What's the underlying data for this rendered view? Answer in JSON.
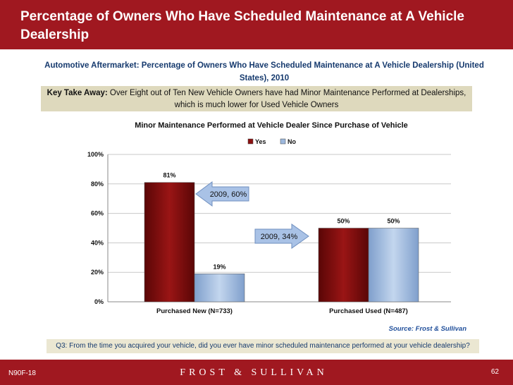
{
  "header": {
    "title": "Percentage of Owners Who Have Scheduled Maintenance at A Vehicle Dealership"
  },
  "subtitle": "Automotive Aftermarket: Percentage of Owners Who Have Scheduled Maintenance at A Vehicle Dealership (United States), 2010",
  "takeaway": {
    "label": "Key Take Away:",
    "text": " Over Eight out of Ten New Vehicle Owners have had Minor Maintenance Performed at Dealerships, which is much lower for Used Vehicle Owners"
  },
  "chart_data": {
    "type": "bar",
    "title": "Minor Maintenance Performed at Vehicle Dealer Since Purchase of Vehicle",
    "categories": [
      "Purchased New (N=733)",
      "Purchased Used (N=487)"
    ],
    "series": [
      {
        "name": "Yes",
        "values": [
          81,
          50
        ],
        "color": "#8a1010"
      },
      {
        "name": "No",
        "values": [
          19,
          50
        ],
        "color": "#9db8dd"
      }
    ],
    "data_labels": [
      "81%",
      "19%",
      "50%",
      "50%"
    ],
    "ylim": [
      0,
      100
    ],
    "yticks": [
      0,
      20,
      40,
      60,
      80,
      100
    ],
    "ytick_labels": [
      "0%",
      "20%",
      "40%",
      "60%",
      "80%",
      "100%"
    ],
    "legend_position": "top-right",
    "annotations": [
      "2009, 60%",
      "2009, 34%"
    ]
  },
  "source": "Source: Frost & Sullivan",
  "question": "Q3: From the time you acquired your vehicle, did you ever have minor scheduled maintenance performed at your vehicle dealership?",
  "footer": {
    "code": "N90F-18",
    "brand": "FROST & SULLIVAN",
    "page": "62"
  },
  "colors": {
    "brand_red": "#a01820",
    "navy": "#163a6e",
    "takeaway_bg": "#ded9bd",
    "arrow": "#a9c2e6"
  }
}
